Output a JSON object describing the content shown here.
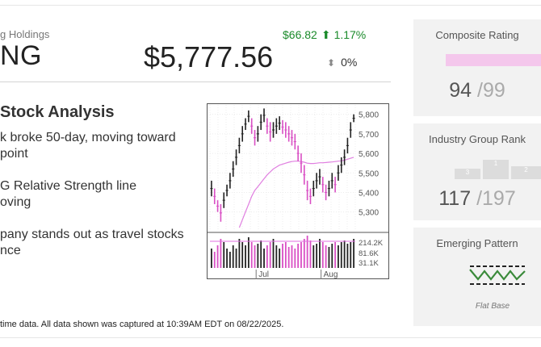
{
  "header": {
    "company_partial": "g Holdings",
    "ticker_partial": "NG",
    "price": "$5,777.56",
    "change_amount": "$66.82",
    "change_percent": "1.17%",
    "volume_change": "0%"
  },
  "analysis": {
    "title": "Stock Analysis",
    "bullets": [
      "k broke 50-day, moving toward\npoint",
      "G Relative Strength line\noving",
      "pany stands out as travel stocks\nnce"
    ]
  },
  "footnote": "time data. All data shown was captured at 10:39AM EDT on 08/22/2025.",
  "chart_data": {
    "type": "line",
    "x_labels": [
      "Jul",
      "Aug"
    ],
    "y_ticks": [
      5800,
      5700,
      5600,
      5500,
      5400,
      5300
    ],
    "ylim": [
      5220,
      5840
    ],
    "volume_ticks": [
      "214.2K",
      "81.6K",
      "31.1K"
    ],
    "candles": [
      [
        5380,
        5460
      ],
      [
        5340,
        5420
      ],
      [
        5300,
        5360
      ],
      [
        5250,
        5340
      ],
      [
        5320,
        5400
      ],
      [
        5380,
        5440
      ],
      [
        5420,
        5500
      ],
      [
        5480,
        5560
      ],
      [
        5540,
        5620
      ],
      [
        5600,
        5680
      ],
      [
        5660,
        5740
      ],
      [
        5720,
        5780
      ],
      [
        5760,
        5820
      ],
      [
        5700,
        5780
      ],
      [
        5640,
        5720
      ],
      [
        5660,
        5740
      ],
      [
        5720,
        5800
      ],
      [
        5760,
        5830
      ],
      [
        5700,
        5780
      ],
      [
        5660,
        5760
      ],
      [
        5680,
        5760
      ],
      [
        5700,
        5780
      ],
      [
        5720,
        5790
      ],
      [
        5700,
        5770
      ],
      [
        5680,
        5760
      ],
      [
        5660,
        5740
      ],
      [
        5640,
        5720
      ],
      [
        5620,
        5700
      ],
      [
        5560,
        5640
      ],
      [
        5500,
        5600
      ],
      [
        5440,
        5540
      ],
      [
        5360,
        5460
      ],
      [
        5340,
        5420
      ],
      [
        5380,
        5460
      ],
      [
        5420,
        5500
      ],
      [
        5440,
        5520
      ],
      [
        5400,
        5480
      ],
      [
        5360,
        5440
      ],
      [
        5380,
        5460
      ],
      [
        5420,
        5500
      ],
      [
        5400,
        5480
      ],
      [
        5460,
        5540
      ],
      [
        5500,
        5580
      ],
      [
        5540,
        5620
      ],
      [
        5600,
        5680
      ],
      [
        5680,
        5760
      ],
      [
        5760,
        5800
      ]
    ],
    "ma_line": [
      null,
      null,
      null,
      null,
      null,
      null,
      null,
      null,
      null,
      5220,
      5260,
      5300,
      5340,
      5380,
      5410,
      5430,
      5450,
      5470,
      5490,
      5505,
      5520,
      5530,
      5540,
      5545,
      5550,
      5555,
      5558,
      5560,
      5560,
      5558,
      5555,
      5550,
      5548,
      5548,
      5550,
      5552,
      5552,
      5553,
      5555,
      5556,
      5558,
      5560,
      5562,
      5565,
      5570,
      5575,
      5580
    ],
    "volume": [
      0.6,
      0.5,
      0.7,
      0.9,
      0.8,
      0.6,
      0.5,
      0.7,
      0.6,
      0.9,
      0.8,
      0.7,
      0.95,
      0.8,
      0.7,
      0.75,
      0.85,
      0.6,
      0.7,
      0.8,
      0.9,
      0.7,
      0.6,
      0.75,
      0.8,
      0.65,
      0.7,
      0.6,
      0.75,
      0.8,
      0.9,
      1.0,
      0.85,
      0.7,
      0.75,
      0.9,
      0.8,
      0.7,
      0.65,
      0.75,
      0.8,
      0.7,
      0.8,
      0.85,
      0.75,
      0.8,
      0.9
    ],
    "up_color": "#222222",
    "down_color": "#d94fc4",
    "ma_color": "#e07fe0",
    "rs_color": "#e06fe0"
  },
  "cards": {
    "composite": {
      "title": "Composite Rating",
      "score": "94",
      "of": "99",
      "bar_color": "#f4c7ec"
    },
    "industry": {
      "title": "Industry Group Rank",
      "rank": "117",
      "of": "197",
      "podium": [
        "3",
        "1",
        "2"
      ]
    },
    "pattern": {
      "title": "Emerging Pattern",
      "label": "Flat Base",
      "icon": "flat-base-icon"
    }
  }
}
